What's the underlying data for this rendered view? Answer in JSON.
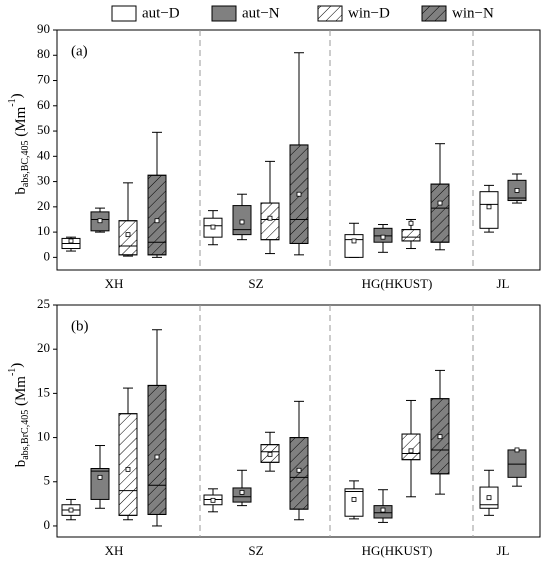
{
  "chart_data": [
    {
      "type": "box",
      "panel_label": "(a)",
      "y_label": {
        "main": "b",
        "sub": "abs,BC,405",
        "unit": " (Mm",
        "sup": "-1",
        "close": ")"
      },
      "categories": [
        "XH",
        "SZ",
        "HG(HKUST)",
        "JL"
      ],
      "ylim": [
        -5,
        90
      ],
      "yticks": [
        0,
        10,
        20,
        30,
        40,
        50,
        60,
        70,
        80,
        90
      ],
      "series": [
        {
          "name": "aut−D",
          "color": "#ffffff",
          "hatch": false,
          "min": [
            2.5,
            5,
            0,
            10
          ],
          "q1": [
            3.5,
            8,
            0,
            11.5
          ],
          "median": [
            5.5,
            12.5,
            7,
            21
          ],
          "q3": [
            7.5,
            15.5,
            9,
            26
          ],
          "max": [
            8,
            18.5,
            13.5,
            28.5
          ],
          "mean": [
            6.5,
            12,
            6.5,
            20
          ]
        },
        {
          "name": "aut−N",
          "color": "#808080",
          "hatch": false,
          "min": [
            10,
            7,
            2,
            21.5
          ],
          "q1": [
            10.5,
            9,
            6,
            22.5
          ],
          "median": [
            15,
            11,
            8.5,
            23.5
          ],
          "q3": [
            18,
            20.5,
            11.5,
            30.5
          ],
          "max": [
            19.5,
            25,
            13,
            33
          ],
          "mean": [
            14.5,
            14,
            8,
            26.5
          ]
        },
        {
          "name": "win−D",
          "color": "#ffffff",
          "hatch": true,
          "min": [
            0.5,
            1.5,
            3.5,
            null
          ],
          "q1": [
            1,
            7,
            6.5,
            null
          ],
          "median": [
            4.5,
            15,
            8,
            null
          ],
          "q3": [
            14.5,
            21.5,
            11,
            null
          ],
          "max": [
            29.5,
            38,
            15,
            null
          ],
          "mean": [
            9,
            15.5,
            13.5,
            null
          ]
        },
        {
          "name": "win−N",
          "color": "#808080",
          "hatch": true,
          "min": [
            0,
            1,
            3,
            null
          ],
          "q1": [
            1,
            5.5,
            6,
            null
          ],
          "median": [
            6,
            15,
            19.5,
            null
          ],
          "q3": [
            32.5,
            44.5,
            29,
            null
          ],
          "max": [
            49.5,
            81,
            45,
            null
          ],
          "mean": [
            14.5,
            25,
            21.5,
            null
          ]
        }
      ]
    },
    {
      "type": "box",
      "panel_label": "(b)",
      "y_label": {
        "main": "b",
        "sub": "abs,BrC,405",
        "unit": " (Mm",
        "sup": "-1",
        "close": ")"
      },
      "categories": [
        "XH",
        "SZ",
        "HG(HKUST)",
        "JL"
      ],
      "ylim": [
        -1.25,
        25
      ],
      "yticks": [
        0,
        5,
        10,
        15,
        20,
        25
      ],
      "series": [
        {
          "color": "#ffffff",
          "hatch": false,
          "min": [
            0.7,
            1.6,
            0.8,
            1.2
          ],
          "q1": [
            1.2,
            2.4,
            1.1,
            2
          ],
          "median": [
            1.8,
            3,
            3.9,
            2.4
          ],
          "q3": [
            2.4,
            3.5,
            4.2,
            4.4
          ],
          "max": [
            3,
            4.2,
            5.1,
            6.3
          ],
          "mean": [
            1.8,
            2.9,
            3,
            3.2
          ]
        },
        {
          "color": "#808080",
          "hatch": false,
          "min": [
            2,
            2.3,
            0.4,
            4.5
          ],
          "q1": [
            3,
            2.7,
            0.9,
            5.5
          ],
          "median": [
            6.2,
            3.3,
            1.5,
            7
          ],
          "q3": [
            6.5,
            4.3,
            2.3,
            8.6
          ],
          "max": [
            9.1,
            6.3,
            4.1,
            8.6
          ],
          "mean": [
            5.5,
            3.8,
            1.8,
            8.6
          ]
        },
        {
          "color": "#ffffff",
          "hatch": true,
          "min": [
            0.7,
            6.2,
            3.3,
            null
          ],
          "q1": [
            1.2,
            7.2,
            7.5,
            null
          ],
          "median": [
            4,
            8.4,
            8.2,
            null
          ],
          "q3": [
            12.7,
            9.2,
            10.4,
            null
          ],
          "max": [
            15.6,
            10.6,
            14.2,
            null
          ],
          "mean": [
            6.4,
            8.1,
            8.5,
            null
          ]
        },
        {
          "color": "#808080",
          "hatch": true,
          "min": [
            0,
            0.7,
            3.6,
            null
          ],
          "q1": [
            1.3,
            1.9,
            5.9,
            null
          ],
          "median": [
            4.6,
            5.5,
            8.6,
            null
          ],
          "q3": [
            15.9,
            10,
            14.4,
            null
          ],
          "max": [
            22.2,
            14.1,
            17.6,
            null
          ],
          "mean": [
            7.8,
            6.3,
            10.1,
            null
          ]
        }
      ]
    }
  ]
}
